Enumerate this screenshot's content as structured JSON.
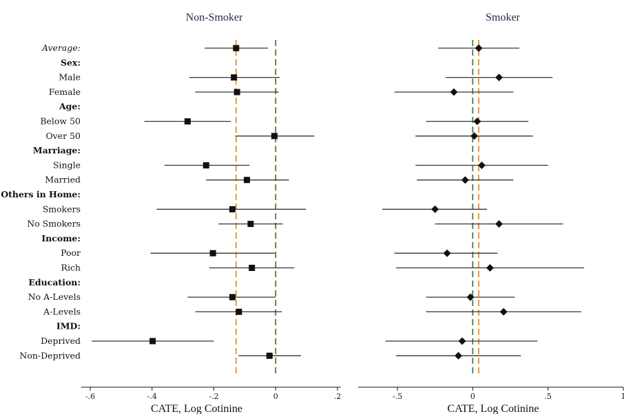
{
  "chart_data": [
    {
      "type": "scatter",
      "subtype": "coefficient-plot",
      "title": "Non-Smoker",
      "xlabel": "CATE, Log Cotinine",
      "xlim": [
        -0.63,
        0.21
      ],
      "xticks": [
        -0.6,
        -0.4,
        -0.2,
        0,
        0.2
      ],
      "xtick_labels": [
        "-.6",
        "-.4",
        "-.2",
        "0",
        ".2"
      ],
      "marker": "square",
      "reference_lines": [
        {
          "x": 0,
          "color": "#4a7a3a",
          "style": "dashed"
        },
        {
          "x": -0.128,
          "color": "#e8901c",
          "style": "dashed"
        }
      ],
      "rows": [
        {
          "label": "Average:",
          "style": "italic",
          "estimate": -0.128,
          "ci": [
            -0.23,
            -0.025
          ]
        },
        {
          "label": "Sex:",
          "style": "header"
        },
        {
          "label": "Male",
          "estimate": -0.135,
          "ci": [
            -0.28,
            0.013
          ]
        },
        {
          "label": "Female",
          "estimate": -0.125,
          "ci": [
            -0.26,
            0.01
          ]
        },
        {
          "label": "Age:",
          "style": "header"
        },
        {
          "label": "Below 50",
          "estimate": -0.285,
          "ci": [
            -0.425,
            -0.145
          ]
        },
        {
          "label": "Over 50",
          "estimate": -0.004,
          "ci": [
            -0.13,
            0.125
          ]
        },
        {
          "label": "Marriage:",
          "style": "header"
        },
        {
          "label": "Single",
          "estimate": -0.225,
          "ci": [
            -0.36,
            -0.085
          ]
        },
        {
          "label": "Married",
          "estimate": -0.093,
          "ci": [
            -0.225,
            0.043
          ]
        },
        {
          "label": "Others in Home:",
          "style": "header"
        },
        {
          "label": "Smokers",
          "estimate": -0.14,
          "ci": [
            -0.385,
            0.098
          ]
        },
        {
          "label": "No Smokers",
          "estimate": -0.081,
          "ci": [
            -0.185,
            0.023
          ]
        },
        {
          "label": "Income:",
          "style": "header"
        },
        {
          "label": "Poor",
          "estimate": -0.203,
          "ci": [
            -0.405,
            -0.003
          ]
        },
        {
          "label": "Rich",
          "estimate": -0.077,
          "ci": [
            -0.215,
            0.06
          ]
        },
        {
          "label": "Education:",
          "style": "header"
        },
        {
          "label": "No A-Levels",
          "estimate": -0.14,
          "ci": [
            -0.285,
            0.0
          ]
        },
        {
          "label": "A-Levels",
          "estimate": -0.119,
          "ci": [
            -0.26,
            0.02
          ]
        },
        {
          "label": "IMD:",
          "style": "header"
        },
        {
          "label": "Deprived",
          "estimate": -0.398,
          "ci": [
            -0.595,
            -0.2
          ]
        },
        {
          "label": "Non-Deprived",
          "estimate": -0.02,
          "ci": [
            -0.12,
            0.082
          ]
        }
      ]
    },
    {
      "type": "scatter",
      "subtype": "coefficient-plot",
      "title": "Smoker",
      "xlabel": "CATE, Log Cotinine",
      "xlim": [
        -0.76,
        1.0
      ],
      "xticks": [
        -0.5,
        0,
        0.5,
        1
      ],
      "xtick_labels": [
        "-.5",
        "0",
        ".5",
        "1"
      ],
      "marker": "diamond",
      "reference_lines": [
        {
          "x": 0,
          "color": "#4a7a3a",
          "style": "dashed"
        },
        {
          "x": 0.04,
          "color": "#e8901c",
          "style": "dashed"
        }
      ],
      "rows": [
        {
          "label": "Average:",
          "style": "italic",
          "estimate": 0.04,
          "ci": [
            -0.23,
            0.31
          ]
        },
        {
          "label": "Sex:",
          "style": "header"
        },
        {
          "label": "Male",
          "estimate": 0.175,
          "ci": [
            -0.18,
            0.53
          ]
        },
        {
          "label": "Female",
          "estimate": -0.125,
          "ci": [
            -0.52,
            0.27
          ]
        },
        {
          "label": "Age:",
          "style": "header"
        },
        {
          "label": "Below 50",
          "estimate": 0.03,
          "ci": [
            -0.31,
            0.37
          ]
        },
        {
          "label": "Over 50",
          "estimate": 0.01,
          "ci": [
            -0.38,
            0.4
          ]
        },
        {
          "label": "Marriage:",
          "style": "header"
        },
        {
          "label": "Single",
          "estimate": 0.06,
          "ci": [
            -0.38,
            0.5
          ]
        },
        {
          "label": "Married",
          "estimate": -0.05,
          "ci": [
            -0.37,
            0.27
          ]
        },
        {
          "label": "Others in Home:",
          "style": "header"
        },
        {
          "label": "Smokers",
          "estimate": -0.25,
          "ci": [
            -0.6,
            0.095
          ]
        },
        {
          "label": "No Smokers",
          "estimate": 0.175,
          "ci": [
            -0.25,
            0.6
          ]
        },
        {
          "label": "Income:",
          "style": "header"
        },
        {
          "label": "Poor",
          "estimate": -0.17,
          "ci": [
            -0.52,
            0.165
          ]
        },
        {
          "label": "Rich",
          "estimate": 0.115,
          "ci": [
            -0.51,
            0.74
          ]
        },
        {
          "label": "Education:",
          "style": "header"
        },
        {
          "label": "No A-Levels",
          "estimate": -0.015,
          "ci": [
            -0.31,
            0.28
          ]
        },
        {
          "label": "A-Levels",
          "estimate": 0.205,
          "ci": [
            -0.31,
            0.72
          ]
        },
        {
          "label": "IMD:",
          "style": "header"
        },
        {
          "label": "Deprived",
          "estimate": -0.07,
          "ci": [
            -0.58,
            0.43
          ]
        },
        {
          "label": "Non-Deprived",
          "estimate": -0.095,
          "ci": [
            -0.51,
            0.32
          ]
        }
      ]
    }
  ],
  "colors": {
    "zero_line": "#4a7a3a",
    "average_line": "#e8901c",
    "marker": "#111111",
    "ci_line": "#333333",
    "title": "#1f2a4a"
  }
}
